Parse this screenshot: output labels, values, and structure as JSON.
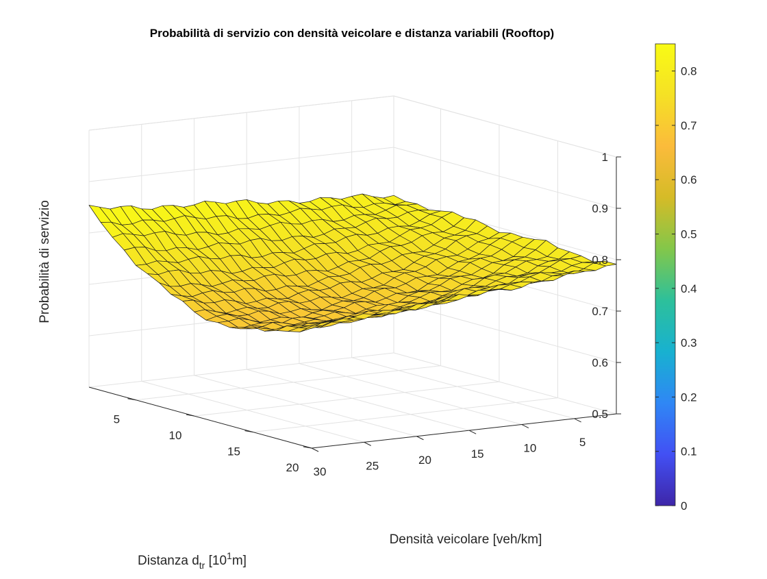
{
  "chart_data": {
    "type": "surface",
    "title": "Probabilità di servizio con densità veicolare e distanza variabili (Rooftop)",
    "zlabel": "Probabilità di servizio",
    "xlabel": "Densità veicolare [veh/km]",
    "ylabel": {
      "main": "Distanza d",
      "sub": "tr",
      "mid": " [10",
      "sup": "1",
      "end": "m]"
    },
    "x_ticks": [
      "5",
      "10",
      "15",
      "20",
      "25",
      "30"
    ],
    "y_ticks": [
      "5",
      "10",
      "15",
      "20"
    ],
    "z_ticks": [
      "0.5",
      "0.6",
      "0.7",
      "0.8",
      "0.9",
      "1"
    ],
    "xlim": [
      1,
      30
    ],
    "ylim": [
      1,
      20
    ],
    "zlim": [
      0.5,
      1
    ],
    "x_range": [
      1,
      30
    ],
    "y_range": [
      1,
      20
    ],
    "corner_values": {
      "x1_y1": 0.805,
      "x30_y1": 0.847,
      "x1_y20": 0.788,
      "x30_y20": 0.735,
      "x15_y10": 0.74,
      "x30_y10": 0.64
    },
    "grid": true,
    "colormap": "parula",
    "colorbar": {
      "range": [
        0,
        0.85
      ],
      "ticks": [
        "0",
        "0.1",
        "0.2",
        "0.3",
        "0.4",
        "0.5",
        "0.6",
        "0.7",
        "0.8"
      ],
      "colors": [
        "#3e26a8",
        "#4250f4",
        "#2f87f5",
        "#18b1d0",
        "#2dc09b",
        "#83c74a",
        "#d5bb27",
        "#fbbb3b",
        "#f5e125",
        "#f9fb15"
      ]
    }
  }
}
